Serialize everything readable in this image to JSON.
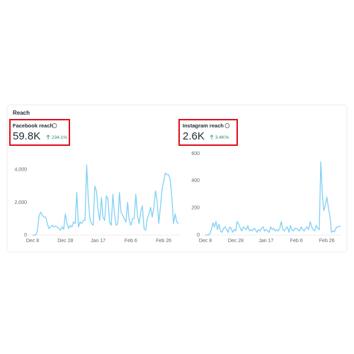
{
  "header": {
    "title": "Reach"
  },
  "chart_data": [
    {
      "type": "line",
      "title": "Facebook reach",
      "value": "59.8K",
      "change": "234.1%",
      "color": "#7fd0f5",
      "categories": [
        "Dec 8",
        null,
        null,
        null,
        null,
        null,
        null,
        null,
        null,
        null,
        null,
        null,
        null,
        null,
        null,
        null,
        null,
        null,
        null,
        null,
        "Dec 28",
        null,
        null,
        null,
        null,
        null,
        null,
        null,
        null,
        null,
        null,
        null,
        null,
        null,
        null,
        null,
        null,
        null,
        null,
        null,
        "Jan 17",
        null,
        null,
        null,
        null,
        null,
        null,
        null,
        null,
        null,
        null,
        null,
        null,
        null,
        null,
        null,
        null,
        null,
        null,
        null,
        "Feb 6",
        null,
        null,
        null,
        null,
        null,
        null,
        null,
        null,
        null,
        null,
        null,
        null,
        null,
        null,
        null,
        null,
        null,
        null,
        null,
        "Feb 26",
        null,
        null,
        null,
        null,
        null,
        null,
        null,
        null,
        null
      ],
      "values": [
        0,
        0,
        0,
        300,
        1200,
        1400,
        1200,
        1100,
        1100,
        700,
        400,
        500,
        600,
        500,
        550,
        500,
        400,
        300,
        500,
        350,
        1300,
        700,
        400,
        600,
        500,
        800,
        700,
        2600,
        500,
        800,
        700,
        900,
        900,
        4300,
        2200,
        1000,
        700,
        600,
        3000,
        2700,
        1500,
        900,
        2300,
        1100,
        900,
        2400,
        2200,
        800,
        600,
        2500,
        1300,
        600,
        700,
        2600,
        1400,
        1200,
        1000,
        800,
        2000,
        900,
        600,
        1000,
        1000,
        2500,
        1200,
        700,
        1400,
        1800,
        400,
        300,
        1000,
        1300,
        1700,
        1100,
        1700,
        2700,
        2100,
        700,
        1700,
        2800,
        3300,
        3800,
        3700,
        3700,
        3400,
        2300,
        700,
        1300,
        800,
        700
      ],
      "ylim": [
        0,
        4600
      ],
      "yticks": [
        0,
        {
          "value": 2000,
          "label": "2,000"
        },
        {
          "value": 4000,
          "label": "4,000"
        }
      ],
      "grid": false
    },
    {
      "type": "line",
      "title": "Instagram reach",
      "value": "2.6K",
      "change": "3.4K%",
      "color": "#7fd0f5",
      "categories": [
        "Dec 8",
        null,
        null,
        null,
        null,
        null,
        null,
        null,
        null,
        null,
        null,
        null,
        null,
        null,
        null,
        null,
        null,
        null,
        null,
        null,
        "Dec 28",
        null,
        null,
        null,
        null,
        null,
        null,
        null,
        null,
        null,
        null,
        null,
        null,
        null,
        null,
        null,
        null,
        null,
        null,
        null,
        "Jan 17",
        null,
        null,
        null,
        null,
        null,
        null,
        null,
        null,
        null,
        null,
        null,
        null,
        null,
        null,
        null,
        null,
        null,
        null,
        null,
        "Feb 6",
        null,
        null,
        null,
        null,
        null,
        null,
        null,
        null,
        null,
        null,
        null,
        null,
        null,
        null,
        null,
        null,
        null,
        null,
        null,
        "Feb 26",
        null,
        null,
        null,
        null,
        null,
        null,
        null,
        null,
        null
      ],
      "values": [
        0,
        0,
        0,
        10,
        40,
        90,
        60,
        100,
        40,
        80,
        30,
        20,
        50,
        60,
        40,
        20,
        60,
        50,
        20,
        40,
        30,
        100,
        80,
        50,
        30,
        60,
        50,
        40,
        70,
        30,
        40,
        30,
        50,
        40,
        20,
        40,
        30,
        50,
        60,
        30,
        40,
        30,
        20,
        60,
        40,
        50,
        30,
        40,
        30,
        50,
        100,
        40,
        30,
        50,
        60,
        20,
        70,
        40,
        30,
        50,
        50,
        40,
        30,
        60,
        40,
        30,
        50,
        60,
        40,
        100,
        60,
        40,
        30,
        70,
        50,
        40,
        540,
        300,
        180,
        220,
        280,
        200,
        140,
        20,
        30,
        25,
        50,
        60,
        65,
        65
      ],
      "ylim": [
        0,
        600
      ],
      "yticks": [
        0,
        200,
        400,
        600
      ],
      "grid": false
    }
  ]
}
